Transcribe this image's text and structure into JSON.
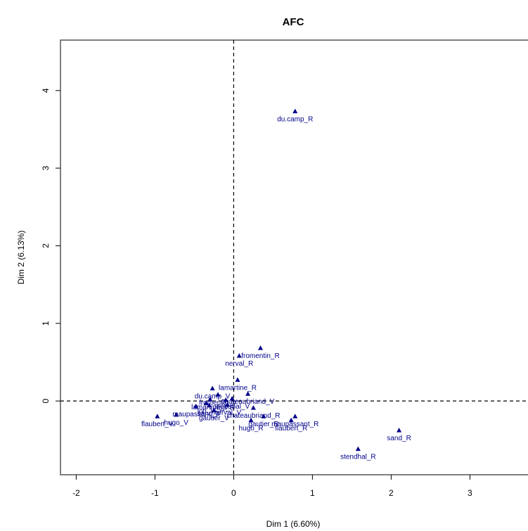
{
  "chart_data": {
    "type": "scatter",
    "title": "AFC",
    "xlabel": "Dim 1 (6.60%)",
    "ylabel": "Dim 2 (6.13%)",
    "xlim": [
      -2.2,
      3.8
    ],
    "ylim": [
      -0.95,
      4.65
    ],
    "xticks": [
      -2,
      -1,
      0,
      1,
      2,
      3
    ],
    "yticks": [
      0,
      1,
      2,
      3,
      4
    ],
    "reference_lines": {
      "x": 0,
      "y": 0,
      "style": "dashed"
    },
    "marker": "triangle",
    "color": "#00008b",
    "points": [
      {
        "label": "du.camp_R",
        "x": 0.78,
        "y": 3.73
      },
      {
        "label": "fromentin_R",
        "x": 0.34,
        "y": 0.68
      },
      {
        "label": "nerval_R",
        "x": 0.07,
        "y": 0.58
      },
      {
        "label": "lamartine_R",
        "x": 0.05,
        "y": 0.27
      },
      {
        "label": "du.camp_V",
        "x": -0.27,
        "y": 0.16
      },
      {
        "label": "fromentin_V",
        "x": -0.2,
        "y": 0.08
      },
      {
        "label": "chateaubriand_V",
        "x": 0.18,
        "y": 0.09
      },
      {
        "label": "lamartine_V",
        "x": -0.3,
        "y": 0.02
      },
      {
        "label": "loti_R",
        "x": -0.1,
        "y": 0.01
      },
      {
        "label": "stendhal_V",
        "x": -0.02,
        "y": 0.03
      },
      {
        "label": "loti_V",
        "x": -0.35,
        "y": -0.03
      },
      {
        "label": "nerval_V",
        "x": -0.08,
        "y": -0.05
      },
      {
        "label": "chateaubriand_R",
        "x": 0.25,
        "y": -0.09
      },
      {
        "label": "maupassant_V",
        "x": -0.48,
        "y": -0.07
      },
      {
        "label": "sand_V",
        "x": -0.31,
        "y": -0.06
      },
      {
        "label": "gautier_V",
        "x": -0.25,
        "y": -0.12
      },
      {
        "label": "hugo_V",
        "x": -0.73,
        "y": -0.18
      },
      {
        "label": "flaubert_V",
        "x": -0.97,
        "y": -0.2
      },
      {
        "label": "hugo_R",
        "x": 0.22,
        "y": -0.25
      },
      {
        "label": "gautier_R",
        "x": 0.38,
        "y": -0.2
      },
      {
        "label": "maupassant_R",
        "x": 0.78,
        "y": -0.2
      },
      {
        "label": "flaubert_R",
        "x": 0.73,
        "y": -0.25
      },
      {
        "label": "sand_R",
        "x": 2.1,
        "y": -0.38
      },
      {
        "label": "stendhal_R",
        "x": 1.58,
        "y": -0.62
      }
    ]
  }
}
